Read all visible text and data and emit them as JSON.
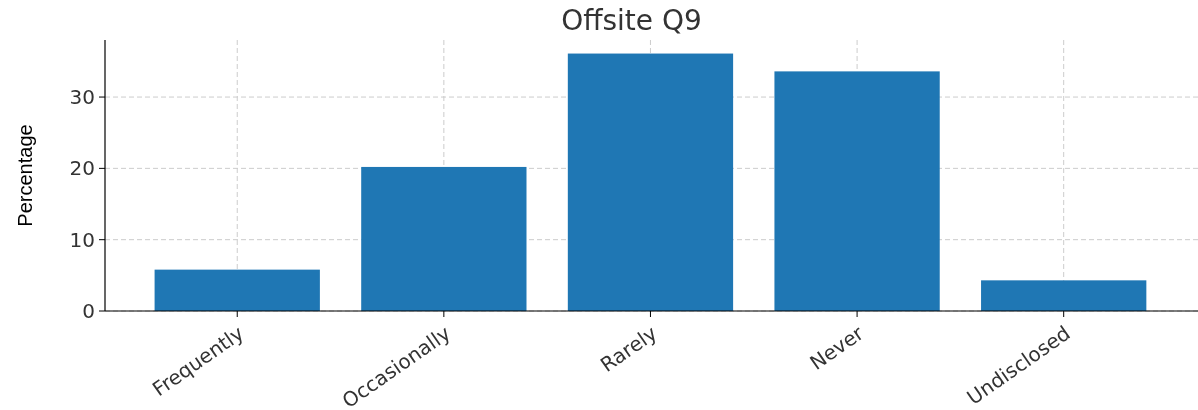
{
  "chart_data": {
    "type": "bar",
    "title": "Offsite Q9",
    "ylabel": "Percentage",
    "categories": [
      "Frequently",
      "Occasionally",
      "Rarely",
      "Never",
      "Undisclosed"
    ],
    "values": [
      5.8,
      20.2,
      36.1,
      33.6,
      4.3
    ],
    "color": "#1f77b4",
    "ylim": [
      0,
      38
    ],
    "yticks": [
      0,
      10,
      20,
      30
    ],
    "grid": true
  }
}
